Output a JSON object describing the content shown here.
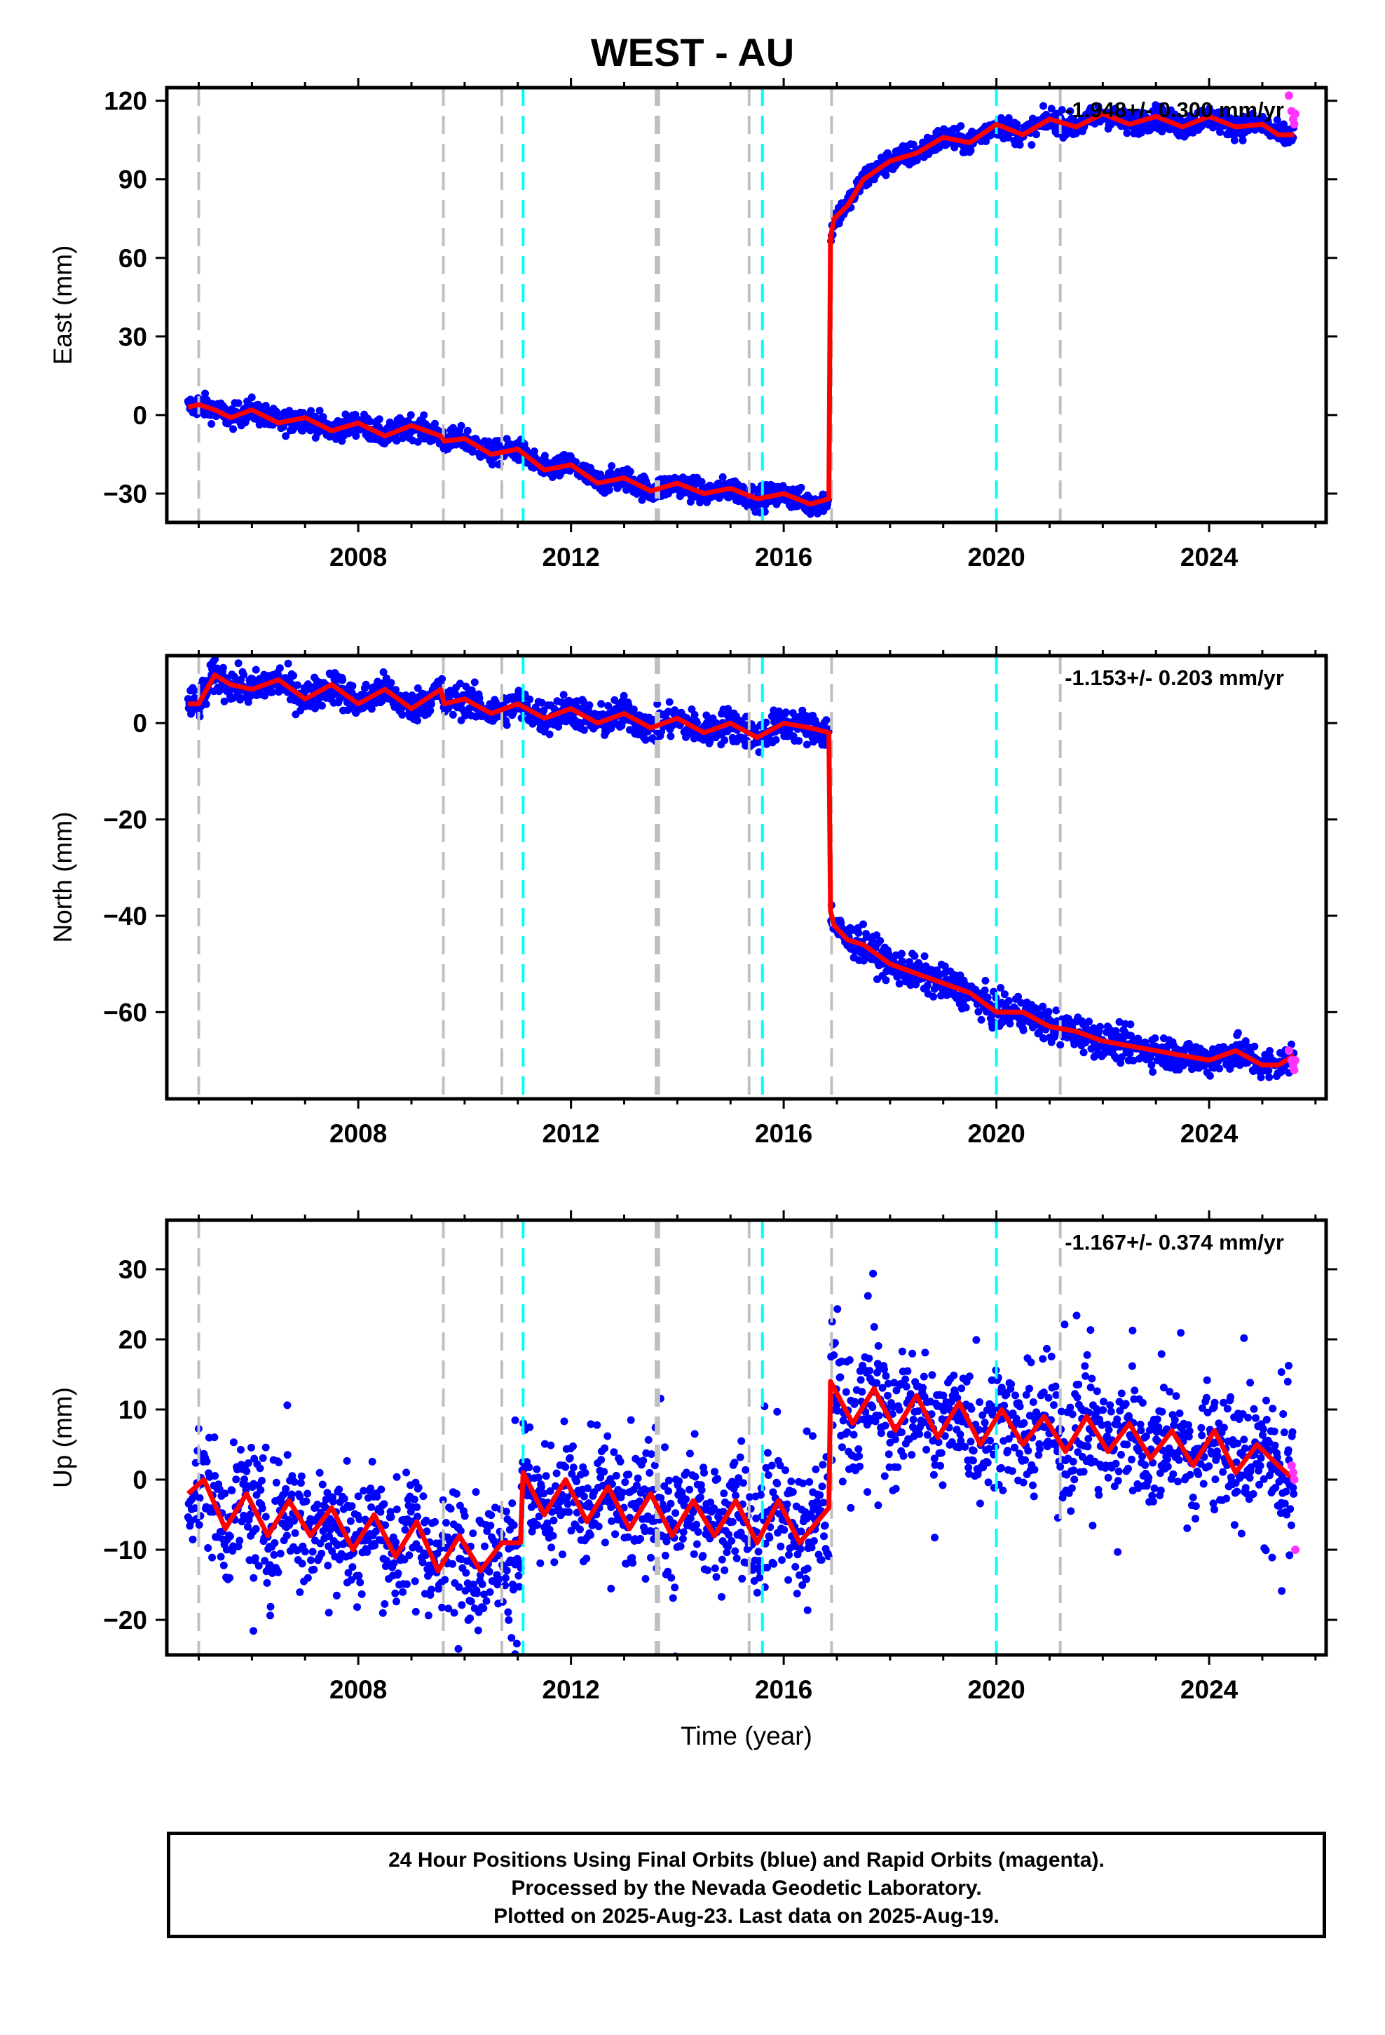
{
  "title": "WEST - AU",
  "footer": {
    "line1": "24 Hour Positions Using Final Orbits (blue) and Rapid Orbits (magenta).",
    "line2": "Processed by the Nevada Geodetic Laboratory.",
    "line3": "Plotted on 2025-Aug-23. Last data on 2025-Aug-19."
  },
  "colors": {
    "final_orbits": "#0000ff",
    "rapid_orbits": "#ff33ff",
    "model_fit": "#ff0000",
    "equipment_change": "#c0c0c0",
    "earthquake": "#00ffff"
  },
  "chart_data": [
    {
      "type": "scatter",
      "ylabel": "East (mm)",
      "xlabel": "",
      "rate": "-1.948+/- 0.300 mm/yr",
      "xlim": [
        2004.4,
        2026.2
      ],
      "ylim": [
        -41,
        125
      ],
      "xticks": [
        2008,
        2012,
        2016,
        2020,
        2024
      ],
      "yticks": [
        -30,
        0,
        30,
        60,
        90,
        120
      ],
      "grid": false,
      "equipment_change_lines": [
        2005.0,
        2009.6,
        2010.7,
        2013.6,
        2013.65,
        2015.35,
        2016.9,
        2021.2
      ],
      "earthquake_lines": [
        2011.1,
        2015.6,
        2020.0
      ],
      "model_fit": {
        "x": [
          2004.8,
          2005.0,
          2005.3,
          2005.6,
          2006.0,
          2006.5,
          2007.0,
          2007.5,
          2008.0,
          2008.5,
          2009.0,
          2009.55,
          2009.62,
          2010.0,
          2010.5,
          2011.0,
          2011.5,
          2012.0,
          2012.5,
          2013.0,
          2013.5,
          2014.0,
          2014.5,
          2015.0,
          2015.5,
          2016.0,
          2016.5,
          2016.85,
          2016.88,
          2016.95,
          2017.2,
          2017.5,
          2018.0,
          2018.5,
          2019.0,
          2019.5,
          2020.0,
          2020.5,
          2021.0,
          2021.5,
          2022.0,
          2022.5,
          2023.0,
          2023.5,
          2024.0,
          2024.5,
          2025.0,
          2025.3,
          2025.6
        ],
        "y": [
          3,
          4,
          2,
          -1,
          2,
          -3,
          -1,
          -6,
          -3,
          -8,
          -4,
          -8,
          -10,
          -9,
          -15,
          -13,
          -21,
          -19,
          -26,
          -24,
          -29,
          -26,
          -30,
          -28,
          -32,
          -30,
          -34,
          -32,
          68,
          75,
          80,
          90,
          97,
          100,
          106,
          104,
          111,
          107,
          113,
          110,
          115,
          111,
          114,
          110,
          114,
          110,
          111,
          107,
          107
        ]
      },
      "rapid_points": {
        "x": [
          2025.5,
          2025.55,
          2025.58,
          2025.6,
          2025.62
        ],
        "y": [
          122,
          116,
          113,
          111,
          115
        ]
      }
    },
    {
      "type": "scatter",
      "ylabel": "North (mm)",
      "xlabel": "",
      "rate": "-1.153+/- 0.203 mm/yr",
      "xlim": [
        2004.4,
        2026.2
      ],
      "ylim": [
        -78,
        14
      ],
      "xticks": [
        2008,
        2012,
        2016,
        2020,
        2024
      ],
      "yticks": [
        -60,
        -40,
        -20,
        0
      ],
      "grid": false,
      "equipment_change_lines": [
        2005.0,
        2009.6,
        2010.7,
        2013.6,
        2013.65,
        2015.35,
        2016.9,
        2021.2
      ],
      "earthquake_lines": [
        2011.1,
        2015.6,
        2020.0
      ],
      "model_fit": {
        "x": [
          2004.8,
          2005.0,
          2005.3,
          2005.6,
          2006.0,
          2006.5,
          2007.0,
          2007.5,
          2008.0,
          2008.5,
          2009.0,
          2009.55,
          2009.62,
          2010.0,
          2010.5,
          2011.0,
          2011.5,
          2012.0,
          2012.5,
          2013.0,
          2013.5,
          2014.0,
          2014.5,
          2015.0,
          2015.5,
          2016.0,
          2016.5,
          2016.85,
          2016.88,
          2016.95,
          2017.2,
          2017.5,
          2018.0,
          2018.5,
          2019.0,
          2019.5,
          2020.0,
          2020.5,
          2021.0,
          2021.5,
          2022.0,
          2022.5,
          2023.0,
          2023.5,
          2024.0,
          2024.5,
          2025.0,
          2025.3,
          2025.6
        ],
        "y": [
          4,
          4,
          10,
          8,
          7,
          9,
          5,
          8,
          4,
          7,
          3,
          7,
          4,
          5,
          2,
          4,
          1,
          3,
          0,
          2,
          -1,
          1,
          -2,
          0,
          -3,
          0,
          -1,
          -2,
          -39,
          -42,
          -45,
          -46,
          -50,
          -52,
          -54,
          -56,
          -60,
          -60,
          -63,
          -64,
          -66,
          -67,
          -68,
          -69,
          -70,
          -68,
          -71,
          -71,
          -69
        ]
      },
      "rapid_points": {
        "x": [
          2025.5,
          2025.55,
          2025.58,
          2025.6,
          2025.62
        ],
        "y": [
          -68,
          -70,
          -71,
          -72,
          -70
        ]
      }
    },
    {
      "type": "scatter",
      "ylabel": "Up (mm)",
      "xlabel": "Time (year)",
      "rate": "-1.167+/- 0.374 mm/yr",
      "xlim": [
        2004.4,
        2026.2
      ],
      "ylim": [
        -25,
        37
      ],
      "xticks": [
        2008,
        2012,
        2016,
        2020,
        2024
      ],
      "yticks": [
        -20,
        -10,
        0,
        10,
        20,
        30
      ],
      "grid": false,
      "equipment_change_lines": [
        2005.0,
        2009.6,
        2010.7,
        2013.6,
        2013.65,
        2015.35,
        2016.9,
        2021.2
      ],
      "earthquake_lines": [
        2011.1,
        2015.6,
        2020.0
      ],
      "model_fit": {
        "x": [
          2004.8,
          2005.1,
          2005.5,
          2005.9,
          2006.3,
          2006.7,
          2007.1,
          2007.5,
          2007.9,
          2008.3,
          2008.7,
          2009.1,
          2009.5,
          2009.9,
          2010.3,
          2010.7,
          2011.05,
          2011.1,
          2011.5,
          2011.9,
          2012.3,
          2012.7,
          2013.1,
          2013.5,
          2013.9,
          2014.3,
          2014.7,
          2015.1,
          2015.5,
          2015.9,
          2016.3,
          2016.85,
          2016.88,
          2017.3,
          2017.7,
          2018.1,
          2018.5,
          2018.9,
          2019.3,
          2019.7,
          2020.1,
          2020.5,
          2020.9,
          2021.3,
          2021.7,
          2022.1,
          2022.5,
          2022.9,
          2023.3,
          2023.7,
          2024.1,
          2024.5,
          2024.9,
          2025.3,
          2025.6
        ],
        "y": [
          -2,
          0,
          -7,
          -2,
          -8,
          -3,
          -8,
          -4,
          -10,
          -5,
          -11,
          -6,
          -13,
          -8,
          -13,
          -9,
          -9,
          1,
          -5,
          0,
          -6,
          -1,
          -7,
          -2,
          -8,
          -3,
          -8,
          -3,
          -9,
          -3,
          -9,
          -4,
          14,
          8,
          13,
          7,
          12,
          6,
          11,
          5,
          10,
          5,
          9,
          4,
          9,
          4,
          8,
          3,
          7,
          2,
          7,
          1,
          5,
          2,
          0
        ]
      },
      "rapid_points": {
        "x": [
          2025.55,
          2025.58,
          2025.6,
          2025.62
        ],
        "y": [
          2,
          1,
          0,
          -10
        ]
      }
    }
  ]
}
